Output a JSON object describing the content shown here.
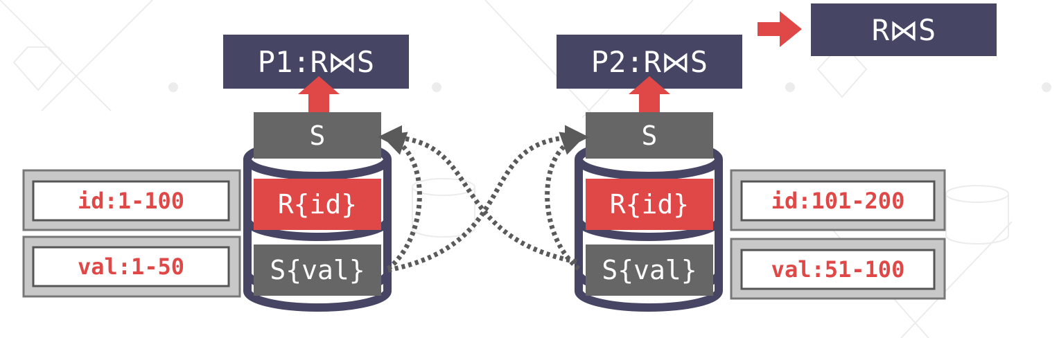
{
  "colors": {
    "navy": "#464664",
    "dark_gray": "#666666",
    "red": "#e04848",
    "dotted": "#5a5a5a",
    "range_border": "#777777",
    "range_fill": "#c8c8c8"
  },
  "result": {
    "label": "R⋈S"
  },
  "nodes": [
    {
      "title": "P1:R⋈S",
      "top_block": "S",
      "partition_r": "R{id}",
      "partition_s": "S{val}",
      "range_id": "id:1-100",
      "range_val": "val:1-50"
    },
    {
      "title": "P2:R⋈S",
      "top_block": "S",
      "partition_r": "R{id}",
      "partition_s": "S{val}",
      "range_id": "id:101-200",
      "range_val": "val:51-100"
    }
  ],
  "icons": [
    "arrow-right-icon",
    "arrow-up-icon",
    "database-icon",
    "dotted-transfer-arrow-icon"
  ]
}
